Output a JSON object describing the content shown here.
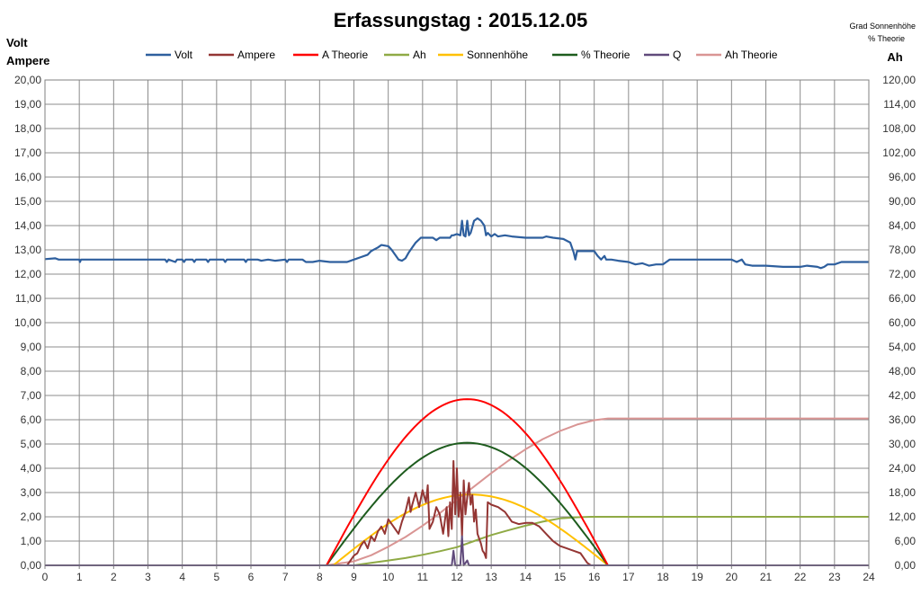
{
  "chart_data": {
    "type": "line",
    "title": "Erfassungstag  : 2015.12.05",
    "ylabel_left_1": "Volt",
    "ylabel_left_2": "Ampere",
    "ylabel_right_1": "Grad Sonnenhöhe",
    "ylabel_right_2": "% Theorie",
    "ylabel_right_3": "Ah",
    "xlim": [
      0,
      24
    ],
    "ylim_left": [
      0,
      20
    ],
    "ylim_right": [
      0,
      120
    ],
    "x_ticks": [
      "0",
      "1",
      "2",
      "3",
      "4",
      "5",
      "6",
      "7",
      "8",
      "9",
      "10",
      "11",
      "12",
      "13",
      "14",
      "15",
      "16",
      "17",
      "18",
      "19",
      "20",
      "21",
      "22",
      "23",
      "24"
    ],
    "y_ticks_left": [
      "0,00",
      "1,00",
      "2,00",
      "3,00",
      "4,00",
      "5,00",
      "6,00",
      "7,00",
      "8,00",
      "9,00",
      "10,00",
      "11,00",
      "12,00",
      "13,00",
      "14,00",
      "15,00",
      "16,00",
      "17,00",
      "18,00",
      "19,00",
      "20,00"
    ],
    "y_ticks_right": [
      "0,00",
      "6,00",
      "12,00",
      "18,00",
      "24,00",
      "30,00",
      "36,00",
      "42,00",
      "48,00",
      "54,00",
      "60,00",
      "66,00",
      "72,00",
      "78,00",
      "84,00",
      "90,00",
      "96,00",
      "102,00",
      "108,00",
      "114,00",
      "120,00"
    ],
    "grid": true,
    "legend_position": "top",
    "series": [
      {
        "name": "Volt",
        "axis": "left",
        "color": "#2E5F9E",
        "points": [
          [
            0,
            12.62
          ],
          [
            0.3,
            12.65
          ],
          [
            0.4,
            12.6
          ],
          [
            1,
            12.6
          ],
          [
            1.02,
            12.5
          ],
          [
            1.05,
            12.6
          ],
          [
            2,
            12.6
          ],
          [
            3,
            12.6
          ],
          [
            3.5,
            12.6
          ],
          [
            3.55,
            12.5
          ],
          [
            3.6,
            12.6
          ],
          [
            3.8,
            12.5
          ],
          [
            3.85,
            12.6
          ],
          [
            4,
            12.6
          ],
          [
            4.05,
            12.5
          ],
          [
            4.1,
            12.6
          ],
          [
            4.3,
            12.6
          ],
          [
            4.35,
            12.5
          ],
          [
            4.4,
            12.6
          ],
          [
            4.7,
            12.6
          ],
          [
            4.75,
            12.5
          ],
          [
            4.8,
            12.6
          ],
          [
            5.2,
            12.6
          ],
          [
            5.25,
            12.5
          ],
          [
            5.3,
            12.6
          ],
          [
            5.8,
            12.6
          ],
          [
            5.85,
            12.5
          ],
          [
            5.9,
            12.6
          ],
          [
            6.2,
            12.6
          ],
          [
            6.3,
            12.55
          ],
          [
            6.5,
            12.6
          ],
          [
            6.7,
            12.55
          ],
          [
            7,
            12.6
          ],
          [
            7.05,
            12.5
          ],
          [
            7.1,
            12.6
          ],
          [
            7.5,
            12.6
          ],
          [
            7.6,
            12.5
          ],
          [
            7.8,
            12.5
          ],
          [
            8,
            12.55
          ],
          [
            8.3,
            12.5
          ],
          [
            8.8,
            12.5
          ],
          [
            9,
            12.6
          ],
          [
            9.2,
            12.7
          ],
          [
            9.4,
            12.8
          ],
          [
            9.5,
            12.95
          ],
          [
            9.7,
            13.1
          ],
          [
            9.8,
            13.2
          ],
          [
            10,
            13.15
          ],
          [
            10.1,
            13.0
          ],
          [
            10.2,
            12.8
          ],
          [
            10.3,
            12.6
          ],
          [
            10.4,
            12.55
          ],
          [
            10.5,
            12.65
          ],
          [
            10.6,
            12.9
          ],
          [
            10.7,
            13.1
          ],
          [
            10.8,
            13.3
          ],
          [
            10.95,
            13.5
          ],
          [
            11.3,
            13.5
          ],
          [
            11.4,
            13.4
          ],
          [
            11.5,
            13.5
          ],
          [
            11.8,
            13.5
          ],
          [
            11.85,
            13.6
          ],
          [
            11.9,
            13.6
          ],
          [
            12,
            13.65
          ],
          [
            12.1,
            13.6
          ],
          [
            12.15,
            14.2
          ],
          [
            12.2,
            13.6
          ],
          [
            12.25,
            13.55
          ],
          [
            12.3,
            14.2
          ],
          [
            12.35,
            13.6
          ],
          [
            12.4,
            13.7
          ],
          [
            12.5,
            14.2
          ],
          [
            12.55,
            14.25
          ],
          [
            12.6,
            14.3
          ],
          [
            12.7,
            14.2
          ],
          [
            12.8,
            14.0
          ],
          [
            12.85,
            13.6
          ],
          [
            12.9,
            13.7
          ],
          [
            13,
            13.55
          ],
          [
            13.1,
            13.65
          ],
          [
            13.2,
            13.55
          ],
          [
            13.4,
            13.6
          ],
          [
            13.6,
            13.55
          ],
          [
            14,
            13.5
          ],
          [
            14.5,
            13.5
          ],
          [
            14.6,
            13.55
          ],
          [
            14.8,
            13.5
          ],
          [
            15.1,
            13.45
          ],
          [
            15.3,
            13.3
          ],
          [
            15.4,
            12.9
          ],
          [
            15.45,
            12.6
          ],
          [
            15.5,
            12.95
          ],
          [
            16,
            12.95
          ],
          [
            16.1,
            12.75
          ],
          [
            16.2,
            12.6
          ],
          [
            16.3,
            12.75
          ],
          [
            16.35,
            12.6
          ],
          [
            16.5,
            12.6
          ],
          [
            16.7,
            12.55
          ],
          [
            17,
            12.5
          ],
          [
            17.2,
            12.4
          ],
          [
            17.4,
            12.45
          ],
          [
            17.6,
            12.35
          ],
          [
            17.8,
            12.4
          ],
          [
            18,
            12.4
          ],
          [
            18.1,
            12.5
          ],
          [
            18.2,
            12.6
          ],
          [
            20,
            12.6
          ],
          [
            20.15,
            12.5
          ],
          [
            20.3,
            12.6
          ],
          [
            20.4,
            12.4
          ],
          [
            20.6,
            12.35
          ],
          [
            21,
            12.35
          ],
          [
            21.5,
            12.3
          ],
          [
            22,
            12.3
          ],
          [
            22.2,
            12.35
          ],
          [
            22.5,
            12.3
          ],
          [
            22.6,
            12.25
          ],
          [
            22.7,
            12.3
          ],
          [
            22.8,
            12.4
          ],
          [
            23,
            12.4
          ],
          [
            23.2,
            12.5
          ],
          [
            24,
            12.5
          ]
        ]
      },
      {
        "name": "Ampere",
        "axis": "left",
        "color": "#943634",
        "points": [
          [
            0,
            0
          ],
          [
            8.8,
            0
          ],
          [
            9,
            0.4
          ],
          [
            9.1,
            0.5
          ],
          [
            9.2,
            0.8
          ],
          [
            9.3,
            1.0
          ],
          [
            9.4,
            0.7
          ],
          [
            9.5,
            1.2
          ],
          [
            9.6,
            1.0
          ],
          [
            9.7,
            1.4
          ],
          [
            9.8,
            1.6
          ],
          [
            9.9,
            1.3
          ],
          [
            10,
            1.9
          ],
          [
            10.1,
            1.7
          ],
          [
            10.2,
            1.5
          ],
          [
            10.3,
            1.3
          ],
          [
            10.4,
            1.8
          ],
          [
            10.5,
            2.2
          ],
          [
            10.6,
            2.8
          ],
          [
            10.65,
            2.2
          ],
          [
            10.7,
            2.5
          ],
          [
            10.8,
            3.0
          ],
          [
            10.9,
            2.4
          ],
          [
            11.0,
            3.1
          ],
          [
            11.1,
            2.6
          ],
          [
            11.15,
            3.3
          ],
          [
            11.2,
            1.5
          ],
          [
            11.3,
            1.8
          ],
          [
            11.4,
            2.4
          ],
          [
            11.5,
            2.1
          ],
          [
            11.6,
            1.3
          ],
          [
            11.7,
            2.4
          ],
          [
            11.75,
            1.2
          ],
          [
            11.8,
            2.6
          ],
          [
            11.85,
            1.5
          ],
          [
            11.9,
            4.3
          ],
          [
            11.95,
            2.1
          ],
          [
            12.0,
            4.0
          ],
          [
            12.05,
            2.0
          ],
          [
            12.1,
            3.0
          ],
          [
            12.15,
            1.2
          ],
          [
            12.2,
            3.5
          ],
          [
            12.25,
            2.1
          ],
          [
            12.3,
            2.8
          ],
          [
            12.35,
            3.4
          ],
          [
            12.4,
            2.5
          ],
          [
            12.45,
            2.9
          ],
          [
            12.5,
            1.8
          ],
          [
            12.55,
            2.3
          ],
          [
            12.6,
            1.3
          ],
          [
            12.65,
            1.1
          ],
          [
            12.7,
            0.9
          ],
          [
            12.75,
            0.6
          ],
          [
            12.8,
            0.5
          ],
          [
            12.85,
            0.3
          ],
          [
            12.9,
            2.6
          ],
          [
            13.0,
            2.5
          ],
          [
            13.2,
            2.4
          ],
          [
            13.4,
            2.2
          ],
          [
            13.5,
            2.0
          ],
          [
            13.6,
            1.8
          ],
          [
            13.8,
            1.7
          ],
          [
            14.0,
            1.75
          ],
          [
            14.2,
            1.75
          ],
          [
            14.4,
            1.6
          ],
          [
            14.6,
            1.3
          ],
          [
            14.8,
            1.0
          ],
          [
            15.0,
            0.8
          ],
          [
            15.2,
            0.7
          ],
          [
            15.4,
            0.6
          ],
          [
            15.6,
            0.5
          ],
          [
            15.7,
            0.3
          ],
          [
            15.8,
            0.1
          ],
          [
            15.9,
            0
          ],
          [
            24,
            0
          ]
        ]
      },
      {
        "name": "A Theorie",
        "axis": "left",
        "color": "#FF0000",
        "curve": "arc",
        "start": 8.2,
        "end": 16.4,
        "peak_value": 6.85,
        "baseline": 0
      },
      {
        "name": "Ah",
        "axis": "right",
        "color": "#8FAA45",
        "points": [
          [
            0,
            0
          ],
          [
            9,
            0
          ],
          [
            9.5,
            0.6
          ],
          [
            10,
            1.2
          ],
          [
            10.5,
            1.8
          ],
          [
            11,
            2.6
          ],
          [
            11.5,
            3.5
          ],
          [
            12,
            4.5
          ],
          [
            12.5,
            6.0
          ],
          [
            13,
            7.5
          ],
          [
            13.5,
            8.7
          ],
          [
            14,
            9.8
          ],
          [
            14.5,
            10.8
          ],
          [
            15,
            11.6
          ],
          [
            15.5,
            11.9
          ],
          [
            15.9,
            12.0
          ],
          [
            24,
            12.0
          ]
        ]
      },
      {
        "name": "Sonnenhöhe",
        "axis": "right",
        "color": "#FFC000",
        "curve": "arc",
        "start": 8.4,
        "end": 16.4,
        "peak_value": 17.5,
        "baseline": 0
      },
      {
        "name": "% Theorie",
        "axis": "right",
        "color": "#1E5C1E",
        "curve": "arc",
        "start": 8.2,
        "end": 16.4,
        "peak_value": 30.3,
        "baseline": 0
      },
      {
        "name": "Q",
        "axis": "left",
        "color": "#604A7B",
        "points": [
          [
            0,
            0
          ],
          [
            11.85,
            0
          ],
          [
            11.9,
            0.6
          ],
          [
            11.95,
            0
          ],
          [
            12.1,
            0
          ],
          [
            12.15,
            1.2
          ],
          [
            12.2,
            0
          ],
          [
            12.3,
            0.2
          ],
          [
            12.35,
            0
          ],
          [
            24,
            0
          ]
        ]
      },
      {
        "name": "Ah Theorie",
        "axis": "right",
        "color": "#D99594",
        "points": [
          [
            0,
            0
          ],
          [
            8.2,
            0
          ],
          [
            9,
            1.0
          ],
          [
            9.5,
            2.5
          ],
          [
            10,
            4.6
          ],
          [
            10.5,
            7.0
          ],
          [
            11,
            9.8
          ],
          [
            11.5,
            12.9
          ],
          [
            12,
            16.2
          ],
          [
            12.5,
            19.5
          ],
          [
            13,
            22.8
          ],
          [
            13.5,
            25.9
          ],
          [
            14,
            28.7
          ],
          [
            14.5,
            31.2
          ],
          [
            15,
            33.2
          ],
          [
            15.5,
            34.8
          ],
          [
            16,
            35.9
          ],
          [
            16.4,
            36.3
          ],
          [
            24,
            36.3
          ]
        ]
      }
    ]
  }
}
